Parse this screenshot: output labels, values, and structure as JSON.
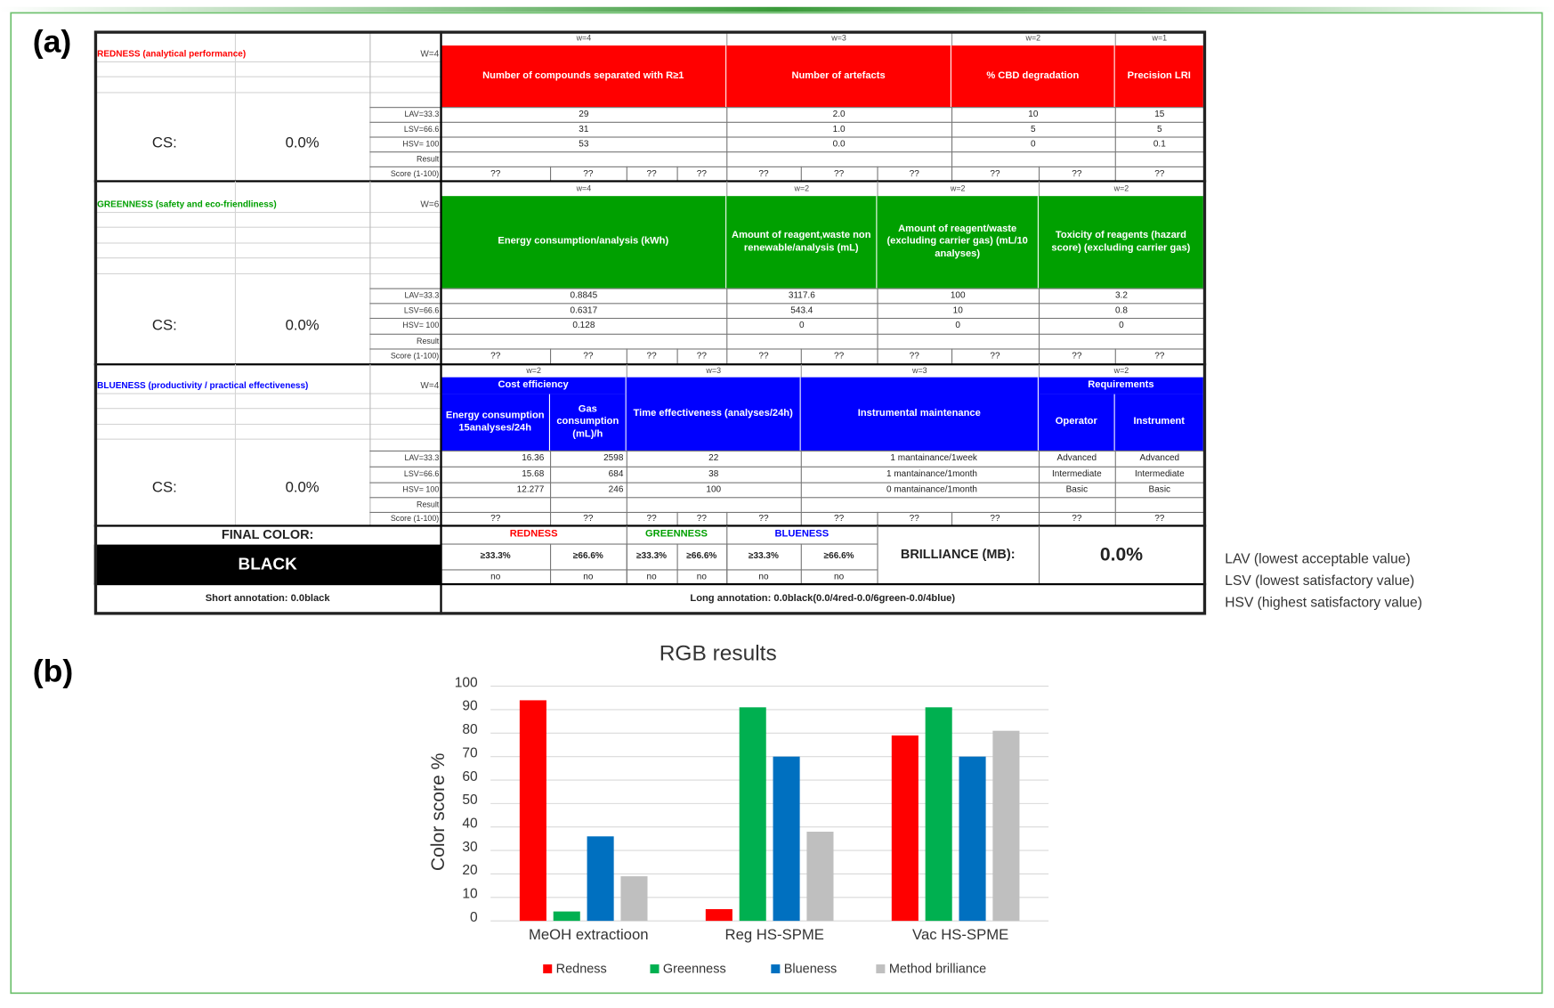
{
  "panel_labels": [
    "(a)",
    "(b)"
  ],
  "table": {
    "sections": [
      {
        "title": "REDNESS (analytical performance)",
        "color": "#ff0000",
        "weight": "W=4",
        "cs_label": "CS:",
        "cs_value": "0.0%",
        "row_labels": [
          "LAV=33.3",
          "LSV=66.6",
          "HSV= 100",
          "Result",
          "Score (1-100)"
        ],
        "criteria": [
          {
            "weight": "w=4",
            "name": "Number of compounds separated with R≥1",
            "values": [
              "29",
              "31",
              "53"
            ]
          },
          {
            "weight": "w=3",
            "name": "Number of artefacts",
            "values": [
              "2.0",
              "1.0",
              "0.0"
            ]
          },
          {
            "weight": "w=2",
            "name": "% CBD degradation",
            "values": [
              "10",
              "5",
              "0"
            ]
          },
          {
            "weight": "w=1",
            "name": "Precision LRI",
            "values": [
              "15",
              "5",
              "0.1"
            ]
          }
        ],
        "scores": [
          "??",
          "??",
          "??",
          "??",
          "??",
          "??",
          "??",
          "??",
          "??",
          "??"
        ]
      },
      {
        "title": "GREENNESS (safety and eco-friendliness)",
        "color": "#00a000",
        "weight": "W=6",
        "cs_label": "CS:",
        "cs_value": "0.0%",
        "row_labels": [
          "LAV=33.3",
          "LSV=66.6",
          "HSV= 100",
          "Result",
          "Score (1-100)"
        ],
        "criteria": [
          {
            "weight": "w=4",
            "name": "Energy consumption/analysis (kWh)",
            "values": [
              "0.8845",
              "0.6317",
              "0.128"
            ]
          },
          {
            "weight": "w=2",
            "name": "Amount of reagent,waste non renewable/analysis (mL)",
            "values": [
              "3117.6",
              "543.4",
              "0"
            ]
          },
          {
            "weight": "w=2",
            "name": "Amount of reagent/waste (excluding carrier gas) (mL/10 analyses)",
            "values": [
              "100",
              "10",
              "0"
            ]
          },
          {
            "weight": "w=2",
            "name": "Toxicity of reagents (hazard score) (excluding carrier gas)",
            "values": [
              "3.2",
              "0.8",
              "0"
            ]
          }
        ],
        "scores": [
          "??",
          "??",
          "??",
          "??",
          "??",
          "??",
          "??",
          "??",
          "??",
          "??"
        ]
      },
      {
        "title": "BLUENESS (productivity / practical effectiveness)",
        "color": "#0000ff",
        "weight": "W=4",
        "cs_label": "CS:",
        "cs_value": "0.0%",
        "row_labels": [
          "LAV=33.3",
          "LSV=66.6",
          "HSV= 100",
          "Result",
          "Score (1-100)"
        ],
        "criteria": [
          {
            "weight": "w=2",
            "name": "Cost efficiency",
            "sub": [
              {
                "name": "Energy consumption 15analyses/24h",
                "values": [
                  "16.36",
                  "15.68",
                  "12.277"
                ]
              },
              {
                "name": "Gas consumption (mL)/h",
                "values": [
                  "2598",
                  "684",
                  "246"
                ]
              }
            ]
          },
          {
            "weight": "w=3",
            "name": "Time effectiveness (analyses/24h)",
            "values": [
              "22",
              "38",
              "100"
            ]
          },
          {
            "weight": "w=3",
            "name": "Instrumental maintenance",
            "values": [
              "1 mantainance/1week",
              "1 mantainance/1month",
              "0 mantainance/1month"
            ]
          },
          {
            "weight": "w=2",
            "name": "Requirements",
            "sub": [
              {
                "name": "Operator",
                "values": [
                  "Advanced",
                  "Intermediate",
                  "Basic"
                ]
              },
              {
                "name": "Instrument",
                "values": [
                  "Advanced",
                  "Intermediate",
                  "Basic"
                ]
              }
            ]
          }
        ],
        "scores": [
          "??",
          "??",
          "??",
          "??",
          "??",
          "??",
          "??",
          "??",
          "??",
          "??"
        ]
      }
    ],
    "final": {
      "label": "FINAL COLOR:",
      "color": "BLACK",
      "groups": [
        {
          "name": "REDNESS",
          "thresholds": [
            "≥33.3%",
            "≥66.6%"
          ],
          "results": [
            "no",
            "no"
          ]
        },
        {
          "name": "GREENNESS",
          "thresholds": [
            "≥33.3%",
            "≥66.6%"
          ],
          "results": [
            "no",
            "no"
          ]
        },
        {
          "name": "BLUENESS",
          "thresholds": [
            "≥33.3%",
            "≥66.6%"
          ],
          "results": [
            "no",
            "no"
          ]
        }
      ],
      "brilliance_label": "BRILLIANCE (MB):",
      "brilliance_value": "0.0%"
    },
    "short_annotation": "Short annotation: 0.0black",
    "long_annotation": "Long annotation: 0.0black(0.0/4red-0.0/6green-0.0/4blue)"
  },
  "legend_notes": [
    "LAV (lowest acceptable value)",
    "LSV (lowest satisfactory value)",
    "HSV (highest satisfactory value)"
  ],
  "chart_data": {
    "type": "bar",
    "title": "RGB results",
    "ylabel": "Color score %",
    "categories": [
      "MeOH extractioon",
      "Reg HS-SPME",
      "Vac HS-SPME"
    ],
    "series": [
      {
        "name": "Redness",
        "color": "#ff0000",
        "values": [
          94,
          5,
          79
        ]
      },
      {
        "name": "Greenness",
        "color": "#00b050",
        "values": [
          4,
          91,
          91
        ]
      },
      {
        "name": "Blueness",
        "color": "#0070c0",
        "values": [
          36,
          70,
          70
        ]
      },
      {
        "name": "Method brilliance",
        "color": "#bfbfbf",
        "values": [
          19,
          38,
          81
        ]
      }
    ],
    "ylim": [
      0,
      100
    ],
    "yticks": [
      0,
      10,
      20,
      30,
      40,
      50,
      60,
      70,
      80,
      90,
      100
    ],
    "grid": true,
    "legend": "bottom"
  }
}
